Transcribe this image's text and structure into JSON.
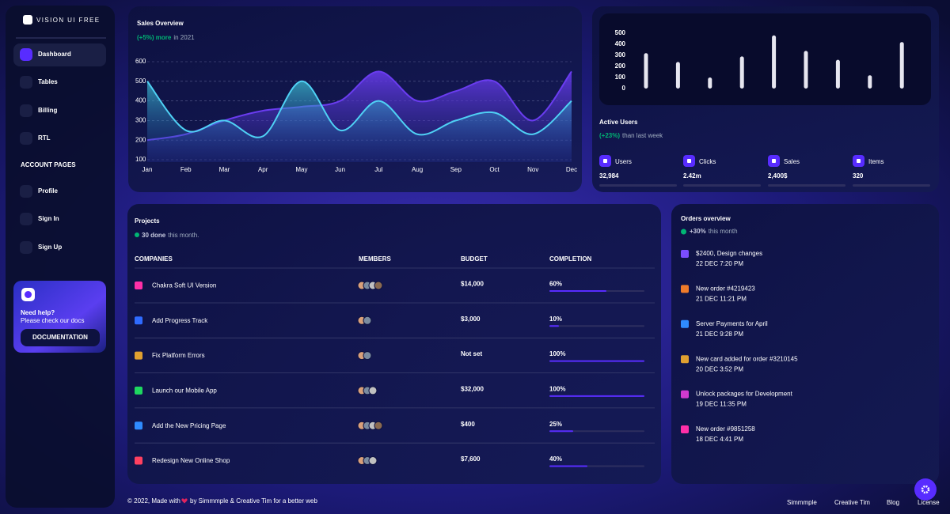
{
  "sidebar": {
    "brand": "VISION UI FREE",
    "nav": [
      "Dashboard",
      "Tables",
      "Billing",
      "RTL"
    ],
    "section": "ACCOUNT PAGES",
    "account_nav": [
      "Profile",
      "Sign In",
      "Sign Up"
    ],
    "help": {
      "title": "Need help?",
      "text": "Please check our docs",
      "button": "DOCUMENTATION"
    }
  },
  "chart_data": [
    {
      "type": "area",
      "title": "Sales Overview",
      "subtitle_highlight": "(+5%) more",
      "subtitle": "in 2021",
      "categories": [
        "Jan",
        "Feb",
        "Mar",
        "Apr",
        "May",
        "Jun",
        "Jul",
        "Aug",
        "Sep",
        "Oct",
        "Nov",
        "Dec"
      ],
      "series": [
        {
          "color": "#6a3cf0",
          "values": [
            200,
            230,
            300,
            350,
            370,
            400,
            550,
            400,
            450,
            500,
            300,
            550
          ]
        },
        {
          "color": "#4fd1f5",
          "values": [
            500,
            250,
            300,
            220,
            500,
            250,
            400,
            230,
            300,
            340,
            230,
            400
          ]
        }
      ],
      "ylim": [
        100,
        600
      ],
      "yticks": [
        100,
        200,
        300,
        400,
        500,
        600
      ],
      "grid": true
    },
    {
      "type": "bar",
      "values": [
        320,
        240,
        100,
        290,
        480,
        340,
        260,
        120,
        420
      ],
      "color": "#e6e6f0",
      "ylim": [
        0,
        500
      ],
      "yticks": [
        0,
        100,
        200,
        300,
        400,
        500
      ]
    }
  ],
  "active_users": {
    "title": "Active Users",
    "change": "(+23%)",
    "note": "than last week",
    "stats": [
      {
        "label": "Users",
        "value": "32,984"
      },
      {
        "label": "Clicks",
        "value": "2.42m"
      },
      {
        "label": "Sales",
        "value": "2,400$"
      },
      {
        "label": "Items",
        "value": "320"
      }
    ]
  },
  "projects": {
    "title": "Projects",
    "done": "30 done",
    "note": "this month.",
    "columns": [
      "COMPANIES",
      "MEMBERS",
      "BUDGET",
      "COMPLETION"
    ],
    "rows": [
      {
        "company": "Chakra Soft UI Version",
        "budget": "$14,000",
        "completion": {
          "value": 60,
          "label": "60%"
        }
      },
      {
        "company": "Add Progress Track",
        "budget": "$3,000",
        "completion": {
          "value": 10,
          "label": "10%"
        }
      },
      {
        "company": "Fix Platform Errors",
        "budget": "Not set",
        "completion": {
          "value": 100,
          "label": "100%"
        }
      },
      {
        "company": "Launch our Mobile App",
        "budget": "$32,000",
        "completion": {
          "value": 100,
          "label": "100%"
        }
      },
      {
        "company": "Add the New Pricing Page",
        "budget": "$400",
        "completion": {
          "value": 25,
          "label": "25%"
        }
      },
      {
        "company": "Redesign New Online Shop",
        "budget": "$7,600",
        "completion": {
          "value": 40,
          "label": "40%"
        }
      }
    ]
  },
  "orders": {
    "title": "Orders overview",
    "change": "+30%",
    "note": "this month",
    "items": [
      {
        "title": "$2400, Design changes",
        "date": "22 DEC 7:20 PM"
      },
      {
        "title": "New order #4219423",
        "date": "21 DEC 11:21 PM"
      },
      {
        "title": "Server Payments for April",
        "date": "21 DEC 9:28 PM"
      },
      {
        "title": "New card added for order #3210145",
        "date": "20 DEC 3:52 PM"
      },
      {
        "title": "Unlock packages for Development",
        "date": "19 DEC 11:35 PM"
      },
      {
        "title": "New order #9851258",
        "date": "18 DEC 4:41 PM"
      }
    ]
  },
  "footer": {
    "made": "© 2022, Made with",
    "by": "by Simmmple & Creative Tim for a better web",
    "links": [
      "Simmmple",
      "Creative Tim",
      "Blog",
      "License"
    ]
  }
}
